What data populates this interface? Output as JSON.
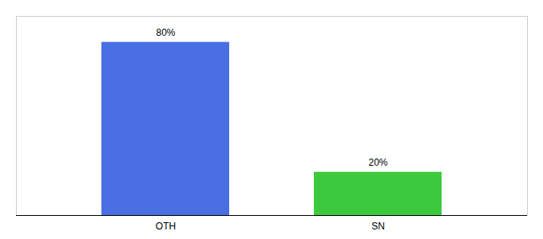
{
  "chart_data": {
    "type": "bar",
    "categories": [
      "OTH",
      "SN"
    ],
    "values": [
      80,
      20
    ],
    "value_labels": [
      "80%",
      "20%"
    ],
    "colors": [
      "#4A6FE3",
      "#3DC93D"
    ],
    "data_labels": true,
    "ylim": [
      0,
      92
    ],
    "tick_labels": "x"
  }
}
